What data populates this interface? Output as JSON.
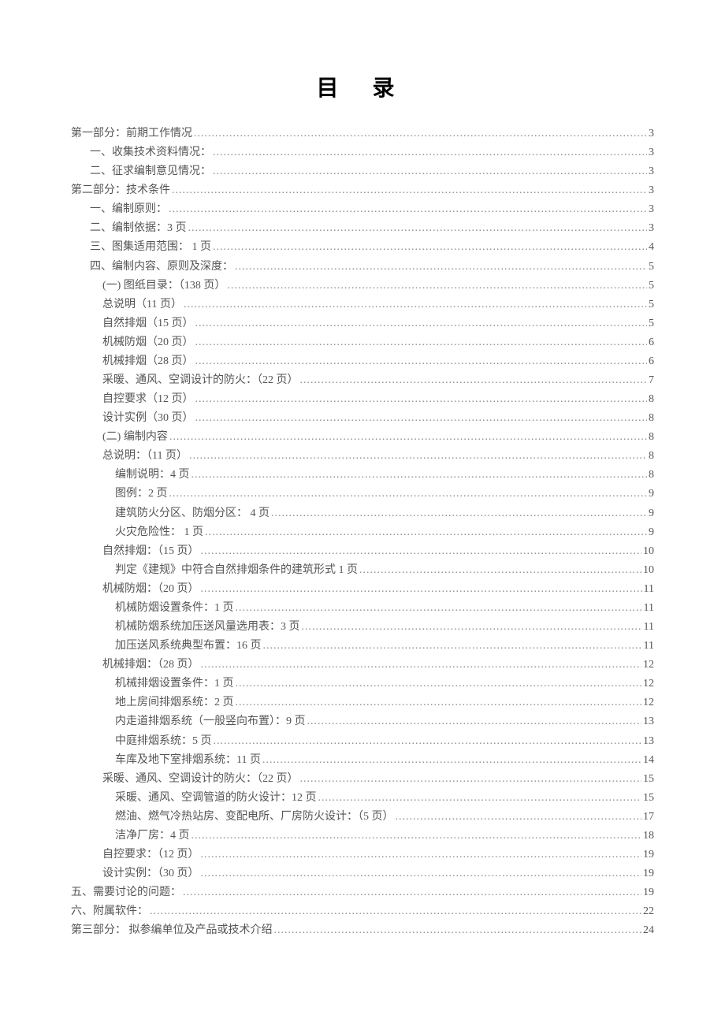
{
  "title": "目  录",
  "entries": [
    {
      "indent": 0,
      "label": "第一部分：前期工作情况",
      "page": "3"
    },
    {
      "indent": 1,
      "label": "一、收集技术资料情况：",
      "page": "3"
    },
    {
      "indent": 1,
      "label": "二、征求编制意见情况：",
      "page": "3"
    },
    {
      "indent": 0,
      "label": "第二部分：技术条件",
      "page": "3"
    },
    {
      "indent": 1,
      "label": "一、编制原则：",
      "page": "3"
    },
    {
      "indent": 1,
      "label": "二、编制依据：3 页",
      "page": "3"
    },
    {
      "indent": 1,
      "label": "三、图集适用范围： 1 页",
      "page": "4"
    },
    {
      "indent": 1,
      "label": "四、编制内容、原则及深度：",
      "page": "5"
    },
    {
      "indent": 2,
      "label": "(一) 图纸目录：（138 页）",
      "page": "5"
    },
    {
      "indent": 2,
      "label": "总说明（11 页）",
      "page": "5"
    },
    {
      "indent": 2,
      "label": "自然排烟（15 页）",
      "page": "5"
    },
    {
      "indent": 2,
      "label": "机械防烟（20 页）",
      "page": "6"
    },
    {
      "indent": 2,
      "label": "机械排烟（28 页）",
      "page": "6"
    },
    {
      "indent": 2,
      "label": "采暖、通风、空调设计的防火：（22 页）",
      "page": "7"
    },
    {
      "indent": 2,
      "label": "自控要求（12 页）",
      "page": "8"
    },
    {
      "indent": 2,
      "label": "设计实例（30 页）",
      "page": "8"
    },
    {
      "indent": 2,
      "label": "(二) 编制内容",
      "page": "8"
    },
    {
      "indent": 2,
      "label": "总说明：（11 页）",
      "page": "8"
    },
    {
      "indent": 3,
      "label": "编制说明：4 页",
      "page": "8"
    },
    {
      "indent": 3,
      "label": "图例：2 页",
      "page": "9"
    },
    {
      "indent": 3,
      "label": "建筑防火分区、防烟分区： 4 页",
      "page": "9"
    },
    {
      "indent": 3,
      "label": "火灾危险性： 1 页",
      "page": "9"
    },
    {
      "indent": 2,
      "label": "自然排烟：（15 页）",
      "page": "10"
    },
    {
      "indent": 3,
      "label": "判定《建规》中符合自然排烟条件的建筑形式 1 页",
      "page": "10"
    },
    {
      "indent": 2,
      "label": "机械防烟：（20 页）",
      "page": "11"
    },
    {
      "indent": 3,
      "label": "机械防烟设置条件：1 页",
      "page": "11"
    },
    {
      "indent": 3,
      "label": "机械防烟系统加压送风量选用表：3 页",
      "page": "11"
    },
    {
      "indent": 3,
      "label": "加压送风系统典型布置：16 页",
      "page": "11"
    },
    {
      "indent": 2,
      "label": "机械排烟：（28 页）",
      "page": "12"
    },
    {
      "indent": 3,
      "label": "机械排烟设置条件：1 页",
      "page": "12"
    },
    {
      "indent": 3,
      "label": "地上房间排烟系统：2 页",
      "page": "12"
    },
    {
      "indent": 3,
      "label": "内走道排烟系统（一般竖向布置）：9 页",
      "page": "13"
    },
    {
      "indent": 3,
      "label": "中庭排烟系统：5 页",
      "page": "13"
    },
    {
      "indent": 3,
      "label": "车库及地下室排烟系统：11 页",
      "page": "14"
    },
    {
      "indent": 2,
      "label": "采暖、通风、空调设计的防火：（22 页）",
      "page": "15"
    },
    {
      "indent": 3,
      "label": "采暖、通风、空调管道的防火设计：12 页",
      "page": "15"
    },
    {
      "indent": 3,
      "label": "燃油、燃气冷热站房、变配电所、厂房防火设计：（5 页）",
      "page": "17"
    },
    {
      "indent": 3,
      "label": "洁净厂房：4 页",
      "page": "18"
    },
    {
      "indent": 2,
      "label": "自控要求：（12 页）",
      "page": "19"
    },
    {
      "indent": 2,
      "label": "设计实例：（30 页）",
      "page": "19"
    },
    {
      "indent": 0,
      "label": "五、需要讨论的问题：",
      "page": "19"
    },
    {
      "indent": 0,
      "label": "六、附属软件：",
      "page": "22"
    },
    {
      "indent": 0,
      "label": "第三部分： 拟参编单位及产品或技术介绍",
      "page": "24"
    }
  ]
}
